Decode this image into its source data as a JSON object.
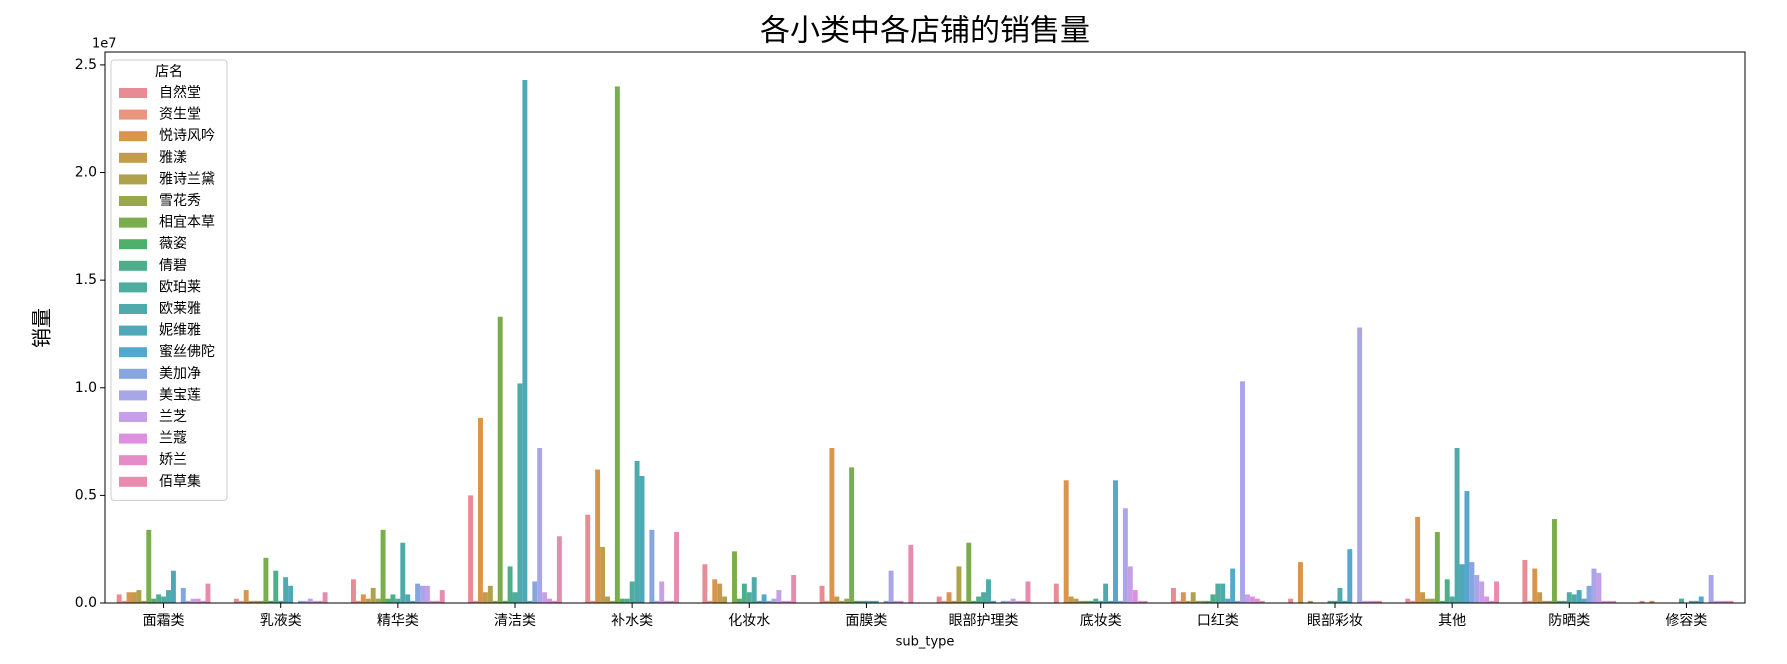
{
  "chart_data": {
    "type": "bar",
    "title": "各小类中各店铺的销售量",
    "xlabel": "sub_type",
    "ylabel": "销量",
    "offset_label": "1e7",
    "legend_title": "店名",
    "legend": "upper left",
    "categories": [
      "面霜类",
      "乳液类",
      "精华类",
      "清洁类",
      "补水类",
      "化妆水",
      "面膜类",
      "眼部护理类",
      "底妆类",
      "口红类",
      "眼部彩妆",
      "其他",
      "防晒类",
      "修容类"
    ],
    "ylim": [
      0,
      2.56
    ],
    "yticks": [
      {
        "value": 0,
        "label": "0.0"
      },
      0.5,
      {
        "value": 1,
        "label": "1.0"
      },
      1.5,
      {
        "value": 2,
        "label": "2.0"
      },
      2.5
    ],
    "series": [
      {
        "name": "自然堂",
        "color": "#e88b94",
        "values": [
          0.04,
          0.02,
          0.11,
          0.5,
          0.41,
          0.18,
          0.08,
          0.03,
          0.09,
          0.07,
          0.02,
          0.02,
          0.2,
          0.01
        ]
      },
      {
        "name": "资生堂",
        "color": "#e8967e",
        "values": [
          0.01,
          0.01,
          0.01,
          0.01,
          0.01,
          0.01,
          0.01,
          0.01,
          0,
          0.01,
          0,
          0.01,
          0.01,
          0
        ]
      },
      {
        "name": "悦诗风吟",
        "color": "#d9954c",
        "values": [
          0.05,
          0.06,
          0.04,
          0.86,
          0.62,
          0.11,
          0.72,
          0.05,
          0.57,
          0.05,
          0.19,
          0.4,
          0.16,
          0.01
        ]
      },
      {
        "name": "雅漾",
        "color": "#c49b4c",
        "values": [
          0.05,
          0.01,
          0.02,
          0.05,
          0.26,
          0.09,
          0.03,
          0.01,
          0.03,
          0.01,
          0,
          0.05,
          0.05,
          0
        ]
      },
      {
        "name": "雅诗兰黛",
        "color": "#b0a24c",
        "values": [
          0.06,
          0.01,
          0.07,
          0.08,
          0.03,
          0.03,
          0.01,
          0.17,
          0.02,
          0.05,
          0.01,
          0.02,
          0.01,
          0
        ]
      },
      {
        "name": "雪花秀",
        "color": "#9aa84c",
        "values": [
          0.01,
          0.01,
          0.02,
          0.01,
          0.01,
          0,
          0.02,
          0.01,
          0.01,
          0.01,
          0,
          0.02,
          0.01,
          0
        ]
      },
      {
        "name": "相宜本草",
        "color": "#7aad4c",
        "values": [
          0.34,
          0.21,
          0.34,
          1.33,
          2.4,
          0.24,
          0.63,
          0.28,
          0.01,
          0.01,
          0,
          0.33,
          0.39,
          0
        ]
      },
      {
        "name": "薇姿",
        "color": "#4fb06b",
        "values": [
          0.02,
          0.01,
          0.02,
          0.01,
          0.02,
          0.02,
          0.01,
          0.01,
          0.01,
          0.01,
          0,
          0.01,
          0.01,
          0
        ]
      },
      {
        "name": "倩碧",
        "color": "#4fae8a",
        "values": [
          0.04,
          0.15,
          0.04,
          0.17,
          0.02,
          0.09,
          0.01,
          0.03,
          0.02,
          0.04,
          0.01,
          0.11,
          0.01,
          0.02
        ]
      },
      {
        "name": "欧珀莱",
        "color": "#4fad9e",
        "values": [
          0.03,
          0.01,
          0.02,
          0.05,
          0.1,
          0.05,
          0.01,
          0.05,
          0.01,
          0.09,
          0.01,
          0.03,
          0.05,
          0
        ]
      },
      {
        "name": "欧莱雅",
        "color": "#4fabab",
        "values": [
          0.06,
          0.12,
          0.28,
          1.02,
          0.66,
          0.12,
          0.01,
          0.11,
          0.09,
          0.09,
          0.07,
          0.72,
          0.04,
          0.01
        ]
      },
      {
        "name": "妮维雅",
        "color": "#4fa8b8",
        "values": [
          0.15,
          0.08,
          0.04,
          2.43,
          0.59,
          0.01,
          0.01,
          0.01,
          0.01,
          0.02,
          0.01,
          0.18,
          0.06,
          0.01
        ]
      },
      {
        "name": "蜜丝佛陀",
        "color": "#56a6cf",
        "values": [
          0,
          0,
          0.01,
          0.01,
          0,
          0.04,
          0,
          0,
          0.57,
          0.16,
          0.25,
          0.52,
          0.02,
          0.03
        ]
      },
      {
        "name": "美加净",
        "color": "#86a6e0",
        "values": [
          0.07,
          0.01,
          0.09,
          0.1,
          0.34,
          0.01,
          0.01,
          0.01,
          0.01,
          0.01,
          0,
          0.19,
          0.08,
          0
        ]
      },
      {
        "name": "美宝莲",
        "color": "#a9a6e8",
        "values": [
          0.01,
          0.01,
          0.08,
          0.72,
          0.01,
          0.02,
          0.15,
          0.01,
          0.44,
          1.03,
          1.28,
          0.13,
          0.16,
          0.13
        ]
      },
      {
        "name": "兰芝",
        "color": "#c79fe6",
        "values": [
          0.02,
          0.02,
          0.08,
          0.05,
          0.1,
          0.06,
          0.01,
          0.02,
          0.17,
          0.04,
          0.01,
          0.1,
          0.14,
          0.01
        ]
      },
      {
        "name": "兰蔻",
        "color": "#de8fdf",
        "values": [
          0.02,
          0.01,
          0.01,
          0.02,
          0.01,
          0.01,
          0.01,
          0.01,
          0.06,
          0.03,
          0.01,
          0.03,
          0.01,
          0.01
        ]
      },
      {
        "name": "娇兰",
        "color": "#e48bc8",
        "values": [
          0.01,
          0.01,
          0.01,
          0.01,
          0.01,
          0.01,
          0,
          0.01,
          0.01,
          0.02,
          0.01,
          0.01,
          0.01,
          0.01
        ]
      },
      {
        "name": "佰草集",
        "color": "#e78cae",
        "values": [
          0.09,
          0.05,
          0.06,
          0.31,
          0.33,
          0.13,
          0.27,
          0.1,
          0.01,
          0.01,
          0.01,
          0.1,
          0.01,
          0.01
        ]
      }
    ]
  }
}
